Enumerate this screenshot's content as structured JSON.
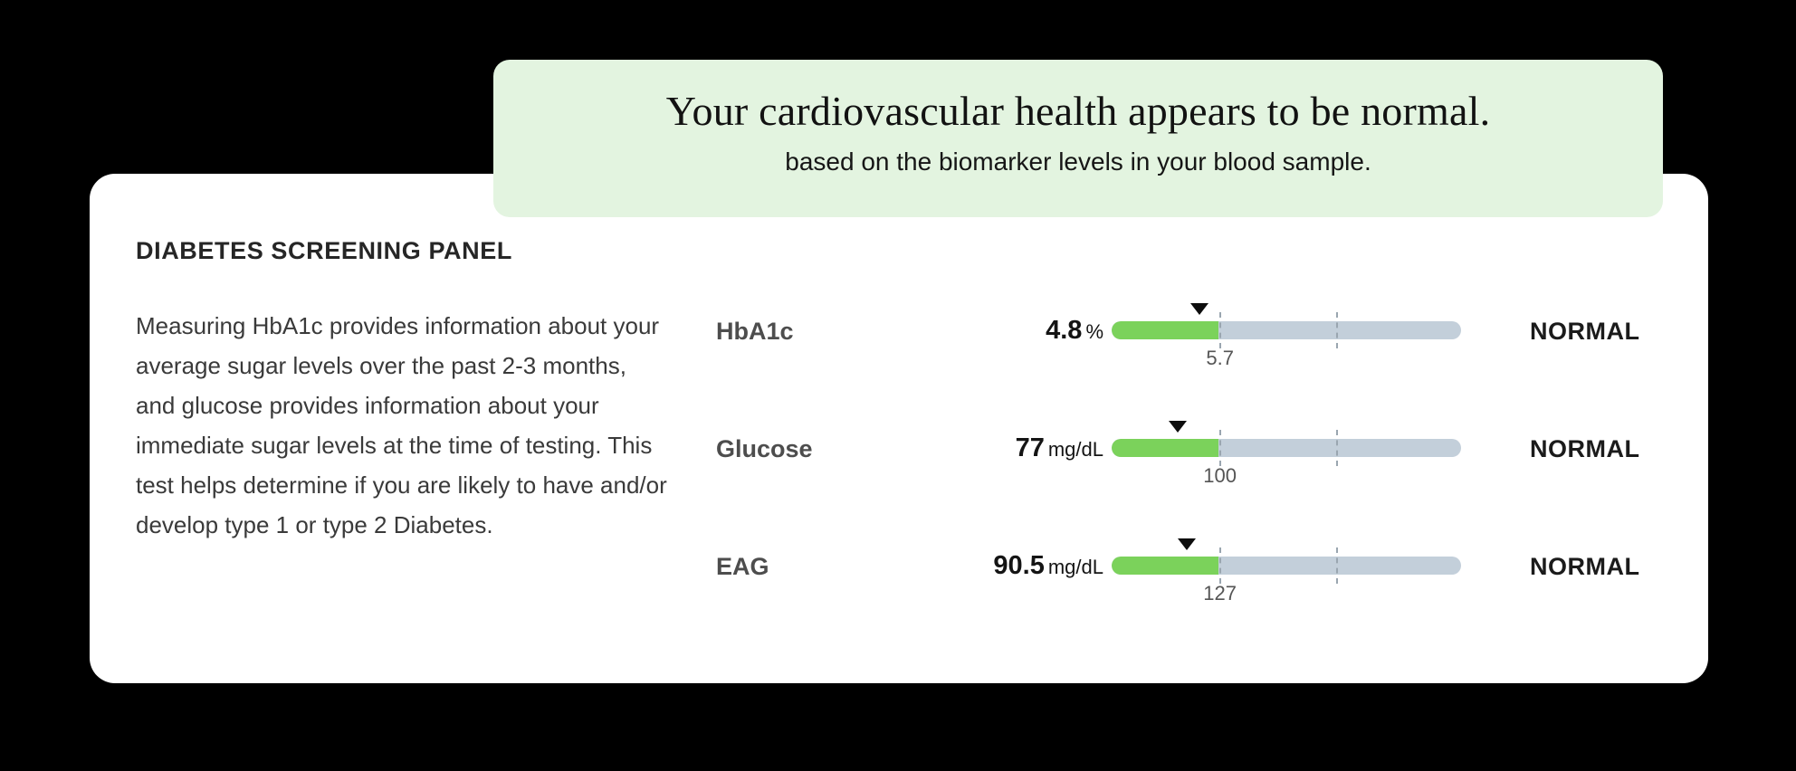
{
  "banner": {
    "title": "Your cardiovascular health appears to be normal.",
    "subtitle": "based on the biomarker levels in your blood sample."
  },
  "panel": {
    "heading": "DIABETES SCREENING PANEL",
    "description": "Measuring HbA1c provides information about your average sugar levels over the past 2-3 months, and glucose provides information about your immediate sugar levels at the time of testing. This test helps determine if you are likely to have and/or develop type 1 or type 2 Diabetes.",
    "biomarkers": [
      {
        "name": "HbA1c",
        "value": "4.8",
        "unit": "%",
        "status": "NORMAL",
        "threshold_label": "5.7",
        "bar": {
          "marker_pct": 25,
          "fill_pct": 30.5,
          "tick1_pct": 31,
          "tick2_pct": 64.5
        }
      },
      {
        "name": "Glucose",
        "value": "77",
        "unit": "mg/dL",
        "status": "NORMAL",
        "threshold_label": "100",
        "bar": {
          "marker_pct": 19,
          "fill_pct": 30.5,
          "tick1_pct": 31,
          "tick2_pct": 64.5
        }
      },
      {
        "name": "EAG",
        "value": "90.5",
        "unit": "mg/dL",
        "status": "NORMAL",
        "threshold_label": "127",
        "bar": {
          "marker_pct": 21.5,
          "fill_pct": 30.5,
          "tick1_pct": 31,
          "tick2_pct": 64.5
        }
      }
    ]
  },
  "colors": {
    "page_bg": "#000000",
    "banner_bg": "#e3f4e0",
    "card_bg": "#ffffff",
    "bar_track": "#c3cfda",
    "bar_fill": "#7bd25b",
    "marker": "#0d0d0d",
    "status_text": "#1b1b1b"
  }
}
